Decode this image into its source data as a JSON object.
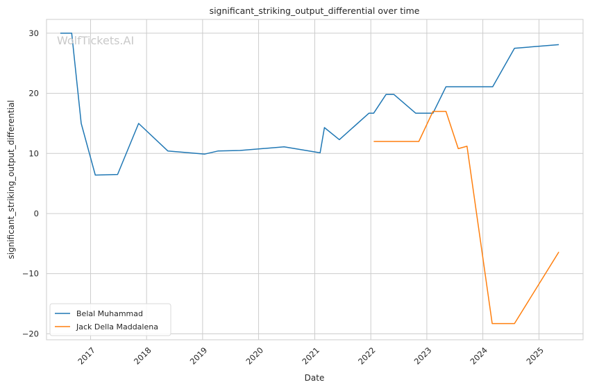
{
  "chart_data": {
    "type": "line",
    "title": "significant_striking_output_differential over time",
    "xlabel": "Date",
    "ylabel": "significant_striking_output_differential",
    "watermark": "WolfTickets.AI",
    "grid": true,
    "legend_position": "lower-left",
    "x_ticks": [
      "2017",
      "2018",
      "2019",
      "2020",
      "2021",
      "2022",
      "2023",
      "2024",
      "2025"
    ],
    "y_ticks": [
      30,
      20,
      10,
      0,
      -10,
      -20
    ],
    "xlim": [
      "2016-03-20",
      "2025-10-15"
    ],
    "ylim": [
      -21,
      32.3
    ],
    "series": [
      {
        "name": "Belal Muhammad",
        "color": "#1f77b4",
        "x": [
          "2016-06-18",
          "2016-08-31",
          "2016-11-01",
          "2017-02-01",
          "2017-06-26",
          "2017-11-10",
          "2018-05-20",
          "2019-01-15",
          "2019-04-10",
          "2019-09-01",
          "2020-06-15",
          "2021-02-05",
          "2021-03-05",
          "2021-06-10",
          "2021-12-20",
          "2022-01-20",
          "2022-04-10",
          "2022-06-01",
          "2022-10-20",
          "2023-02-10",
          "2023-05-06",
          "2024-03-05",
          "2024-07-25",
          "2025-05-10"
        ],
        "values": [
          30.0,
          30.0,
          15.0,
          6.4,
          6.5,
          15.0,
          10.4,
          9.9,
          10.4,
          10.5,
          11.1,
          10.1,
          14.3,
          12.3,
          16.7,
          16.7,
          19.8,
          19.8,
          16.7,
          16.7,
          21.1,
          21.1,
          27.5,
          28.1
        ]
      },
      {
        "name": "Jack Della Maddalena",
        "color": "#ff7f0e",
        "x": [
          "2022-01-20",
          "2022-11-10",
          "2023-02-10",
          "2023-05-06",
          "2023-07-25",
          "2023-09-20",
          "2024-03-02",
          "2024-07-25",
          "2025-05-10"
        ],
        "values": [
          12.0,
          12.0,
          17.0,
          17.0,
          10.8,
          11.2,
          -18.3,
          -18.3,
          -6.4
        ]
      }
    ]
  }
}
